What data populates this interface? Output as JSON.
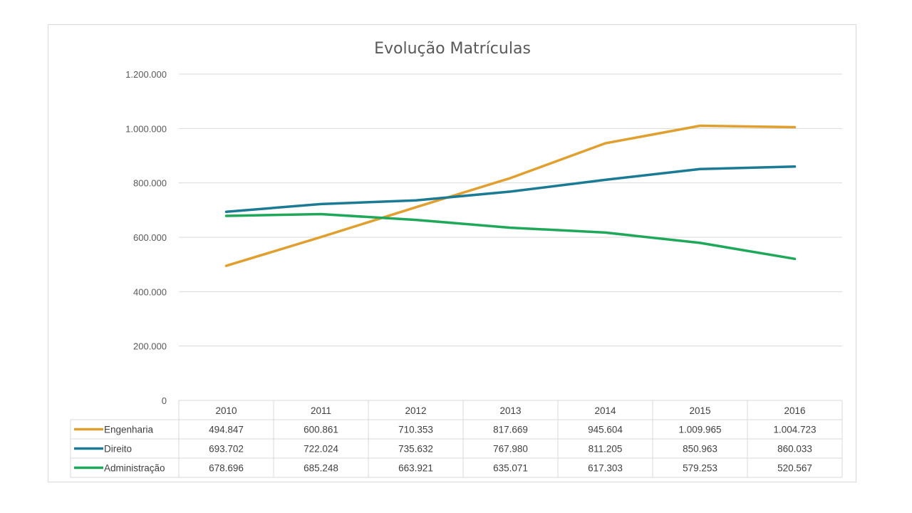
{
  "chart_data": {
    "type": "line",
    "title": "Evolução Matrículas",
    "categories": [
      "2010",
      "2011",
      "2012",
      "2013",
      "2014",
      "2015",
      "2016"
    ],
    "ylim": [
      0,
      1200000
    ],
    "yticks": [
      0,
      200000,
      400000,
      600000,
      800000,
      1000000,
      1200000
    ],
    "ytick_labels": [
      "0",
      "200.000",
      "400.000",
      "600.000",
      "800.000",
      "1.000.000",
      "1.200.000"
    ],
    "grid": true,
    "legend": "data-table-below",
    "series": [
      {
        "name": "Engenharia",
        "color": "#E0A030",
        "values": [
          494847,
          600861,
          710353,
          817669,
          945604,
          1009965,
          1004723
        ],
        "labels": [
          "494.847",
          "600.861",
          "710.353",
          "817.669",
          "945.604",
          "1.009.965",
          "1.004.723"
        ]
      },
      {
        "name": "Direito",
        "color": "#1B7A94",
        "values": [
          693702,
          722024,
          735632,
          767980,
          811205,
          850963,
          860033
        ],
        "labels": [
          "693.702",
          "722.024",
          "735.632",
          "767.980",
          "811.205",
          "850.963",
          "860.033"
        ]
      },
      {
        "name": "Administração",
        "color": "#1FA85A",
        "values": [
          678696,
          685248,
          663921,
          635071,
          617303,
          579253,
          520567
        ],
        "labels": [
          "678.696",
          "685.248",
          "663.921",
          "635.071",
          "617.303",
          "579.253",
          "520.567"
        ]
      }
    ]
  }
}
